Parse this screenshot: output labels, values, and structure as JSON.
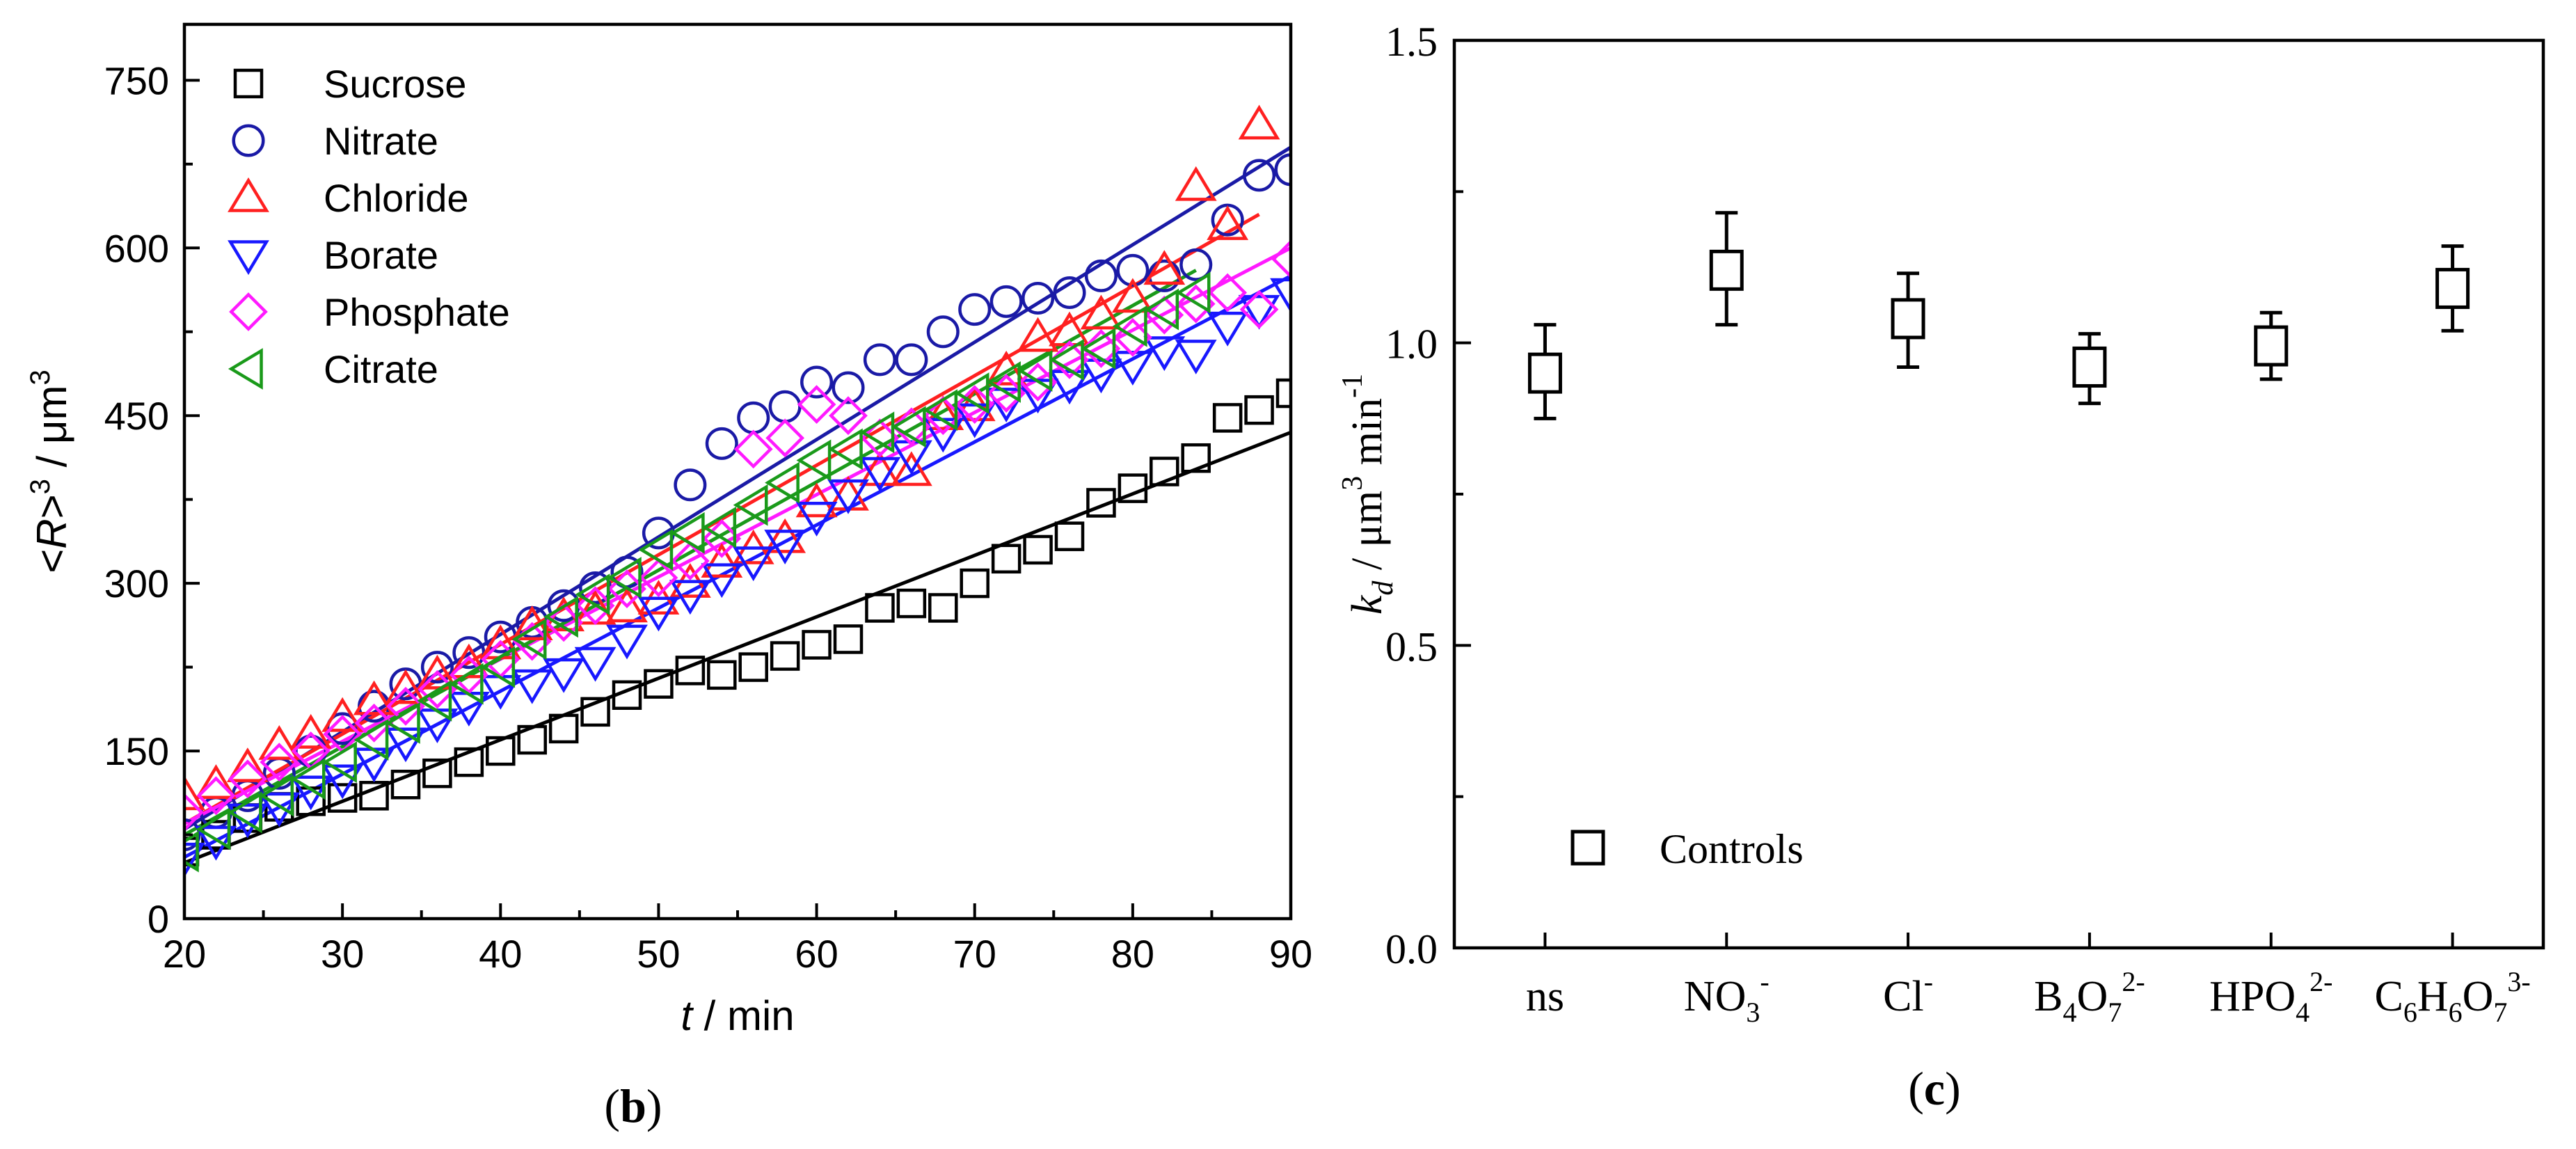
{
  "chart_data": [
    {
      "type": "scatter",
      "panel_label": "b",
      "xlabel_italic": "t",
      "xlabel_rest": " / min",
      "ylabel": {
        "pre": "<",
        "var": "R",
        "post": ">",
        "sup": "3",
        "unit": " / μm",
        "unit_sup": "3"
      },
      "xlim": [
        20,
        90
      ],
      "ylim": [
        0,
        800
      ],
      "xticks": [
        20,
        30,
        40,
        50,
        60,
        70,
        80,
        90
      ],
      "yticks": [
        0,
        150,
        300,
        450,
        600,
        750
      ],
      "series": [
        {
          "name": "Sucrose",
          "marker": "square",
          "color": "#000000",
          "fit": [
            [
              20,
              50
            ],
            [
              90,
              435
            ]
          ],
          "x": [
            20,
            22,
            24,
            26,
            28,
            30,
            32,
            34,
            36,
            38,
            40,
            42,
            44,
            46,
            48,
            50,
            52,
            54,
            56,
            58,
            60,
            62,
            64,
            66,
            68,
            70,
            72,
            74,
            76,
            78,
            80,
            82,
            84,
            86,
            88,
            90
          ],
          "y": [
            60,
            75,
            90,
            100,
            105,
            108,
            110,
            120,
            130,
            140,
            150,
            160,
            170,
            185,
            200,
            210,
            222,
            218,
            225,
            235,
            245,
            250,
            278,
            282,
            278,
            300,
            322,
            330,
            342,
            372,
            385,
            400,
            412,
            448,
            455,
            470
          ]
        },
        {
          "name": "Nitrate",
          "marker": "circle",
          "color": "#1a1aa6",
          "fit": [
            [
              20,
              80
            ],
            [
              90,
              690
            ]
          ],
          "x": [
            20,
            22,
            24,
            26,
            28,
            30,
            32,
            34,
            36,
            38,
            40,
            42,
            44,
            46,
            48,
            50,
            52,
            54,
            56,
            58,
            60,
            62,
            64,
            66,
            68,
            70,
            72,
            74,
            76,
            78,
            80,
            82,
            84,
            86,
            88,
            90
          ],
          "y": [
            75,
            95,
            110,
            130,
            150,
            170,
            190,
            210,
            225,
            238,
            252,
            265,
            280,
            296,
            310,
            345,
            388,
            425,
            448,
            458,
            480,
            475,
            500,
            500,
            525,
            545,
            552,
            555,
            560,
            575,
            580,
            575,
            585,
            625,
            665,
            670
          ]
        },
        {
          "name": "Chloride",
          "marker": "triangle-up",
          "color": "#ff2020",
          "fit": [
            [
              20,
              85
            ],
            [
              88,
              630
            ]
          ],
          "x": [
            20,
            22,
            24,
            26,
            28,
            30,
            32,
            34,
            36,
            38,
            40,
            42,
            44,
            46,
            48,
            50,
            52,
            54,
            56,
            58,
            60,
            62,
            64,
            66,
            68,
            70,
            72,
            74,
            76,
            78,
            80,
            82,
            84,
            86,
            88
          ],
          "y": [
            110,
            120,
            135,
            155,
            165,
            180,
            195,
            205,
            218,
            228,
            245,
            262,
            270,
            276,
            278,
            285,
            300,
            318,
            330,
            340,
            372,
            378,
            400,
            400,
            450,
            458,
            490,
            520,
            525,
            540,
            555,
            580,
            655,
            620,
            710
          ]
        },
        {
          "name": "Borate",
          "marker": "triangle-down",
          "color": "#1818ff",
          "fit": [
            [
              20,
              55
            ],
            [
              90,
              575
            ]
          ],
          "x": [
            20,
            22,
            24,
            26,
            28,
            30,
            32,
            34,
            36,
            38,
            40,
            42,
            44,
            46,
            48,
            50,
            52,
            54,
            56,
            58,
            60,
            62,
            64,
            66,
            68,
            70,
            72,
            74,
            76,
            78,
            80,
            82,
            84,
            86,
            88,
            90
          ],
          "y": [
            55,
            70,
            90,
            100,
            115,
            125,
            140,
            158,
            175,
            190,
            205,
            210,
            220,
            230,
            250,
            275,
            290,
            305,
            320,
            335,
            360,
            380,
            400,
            415,
            435,
            448,
            462,
            470,
            478,
            488,
            495,
            508,
            505,
            530,
            545,
            560
          ]
        },
        {
          "name": "Phosphate",
          "marker": "diamond",
          "color": "#ff1aff",
          "fit": [
            [
              20,
              85
            ],
            [
              90,
              600
            ]
          ],
          "x": [
            20,
            22,
            24,
            26,
            28,
            30,
            32,
            34,
            36,
            38,
            40,
            42,
            44,
            46,
            48,
            50,
            52,
            54,
            56,
            58,
            60,
            62,
            64,
            66,
            68,
            70,
            72,
            74,
            76,
            78,
            80,
            82,
            84,
            86,
            88,
            90
          ],
          "y": [
            95,
            110,
            125,
            140,
            150,
            165,
            175,
            190,
            205,
            218,
            232,
            248,
            265,
            280,
            295,
            305,
            320,
            340,
            420,
            430,
            460,
            450,
            430,
            440,
            450,
            460,
            470,
            480,
            500,
            510,
            520,
            540,
            550,
            560,
            545,
            590
          ]
        },
        {
          "name": "Citrate",
          "marker": "triangle-left",
          "color": "#1a9a1a",
          "fit": [
            [
              20,
              75
            ],
            [
              84,
              580
            ]
          ],
          "x": [
            20,
            22,
            24,
            26,
            28,
            30,
            32,
            34,
            36,
            38,
            40,
            42,
            44,
            46,
            48,
            50,
            52,
            54,
            56,
            58,
            60,
            62,
            64,
            66,
            68,
            70,
            72,
            74,
            76,
            78,
            80,
            82,
            84
          ],
          "y": [
            60,
            80,
            95,
            110,
            125,
            140,
            160,
            175,
            195,
            210,
            225,
            250,
            270,
            290,
            305,
            330,
            345,
            350,
            370,
            390,
            410,
            420,
            435,
            440,
            455,
            470,
            480,
            490,
            500,
            510,
            530,
            545,
            560
          ]
        }
      ]
    },
    {
      "type": "scatter",
      "panel_label": "c",
      "ylabel": {
        "var": "k",
        "sub": "d",
        "unit": " / μm",
        "unit_sup": "3",
        "unit2": " min",
        "unit2_sup": "-1"
      },
      "ylim": [
        0.0,
        1.5
      ],
      "yticks": [
        "0.0",
        "0.5",
        "1.0",
        "1.5"
      ],
      "categories": [
        {
          "base": "ns",
          "parts": []
        },
        {
          "base": "NO",
          "parts": [
            [
              "sub",
              "3"
            ],
            [
              "sup",
              "-"
            ]
          ]
        },
        {
          "base": "Cl",
          "parts": [
            [
              "sup",
              "-"
            ]
          ]
        },
        {
          "base": "B",
          "parts": [
            [
              "sub",
              "4"
            ],
            [
              "txt",
              "O"
            ],
            [
              "sub",
              "7"
            ],
            [
              "sup",
              "2-"
            ]
          ]
        },
        {
          "base": "HPO",
          "parts": [
            [
              "sub",
              "4"
            ],
            [
              "sup",
              "2-"
            ]
          ]
        },
        {
          "base": "C",
          "parts": [
            [
              "sub",
              "6"
            ],
            [
              "txt",
              "H"
            ],
            [
              "sub",
              "6"
            ],
            [
              "txt",
              "O"
            ],
            [
              "sub",
              "7"
            ],
            [
              "sup",
              "3-"
            ]
          ]
        }
      ],
      "series": [
        {
          "name": "Controls",
          "marker": "square",
          "color": "#000000",
          "values": [
            0.95,
            1.12,
            1.04,
            0.96,
            0.995,
            1.09
          ],
          "err_low": [
            0.875,
            1.03,
            0.96,
            0.9,
            0.94,
            1.02
          ],
          "err_high": [
            1.03,
            1.215,
            1.115,
            1.015,
            1.05,
            1.16
          ]
        }
      ],
      "legend_label": "Controls"
    }
  ]
}
